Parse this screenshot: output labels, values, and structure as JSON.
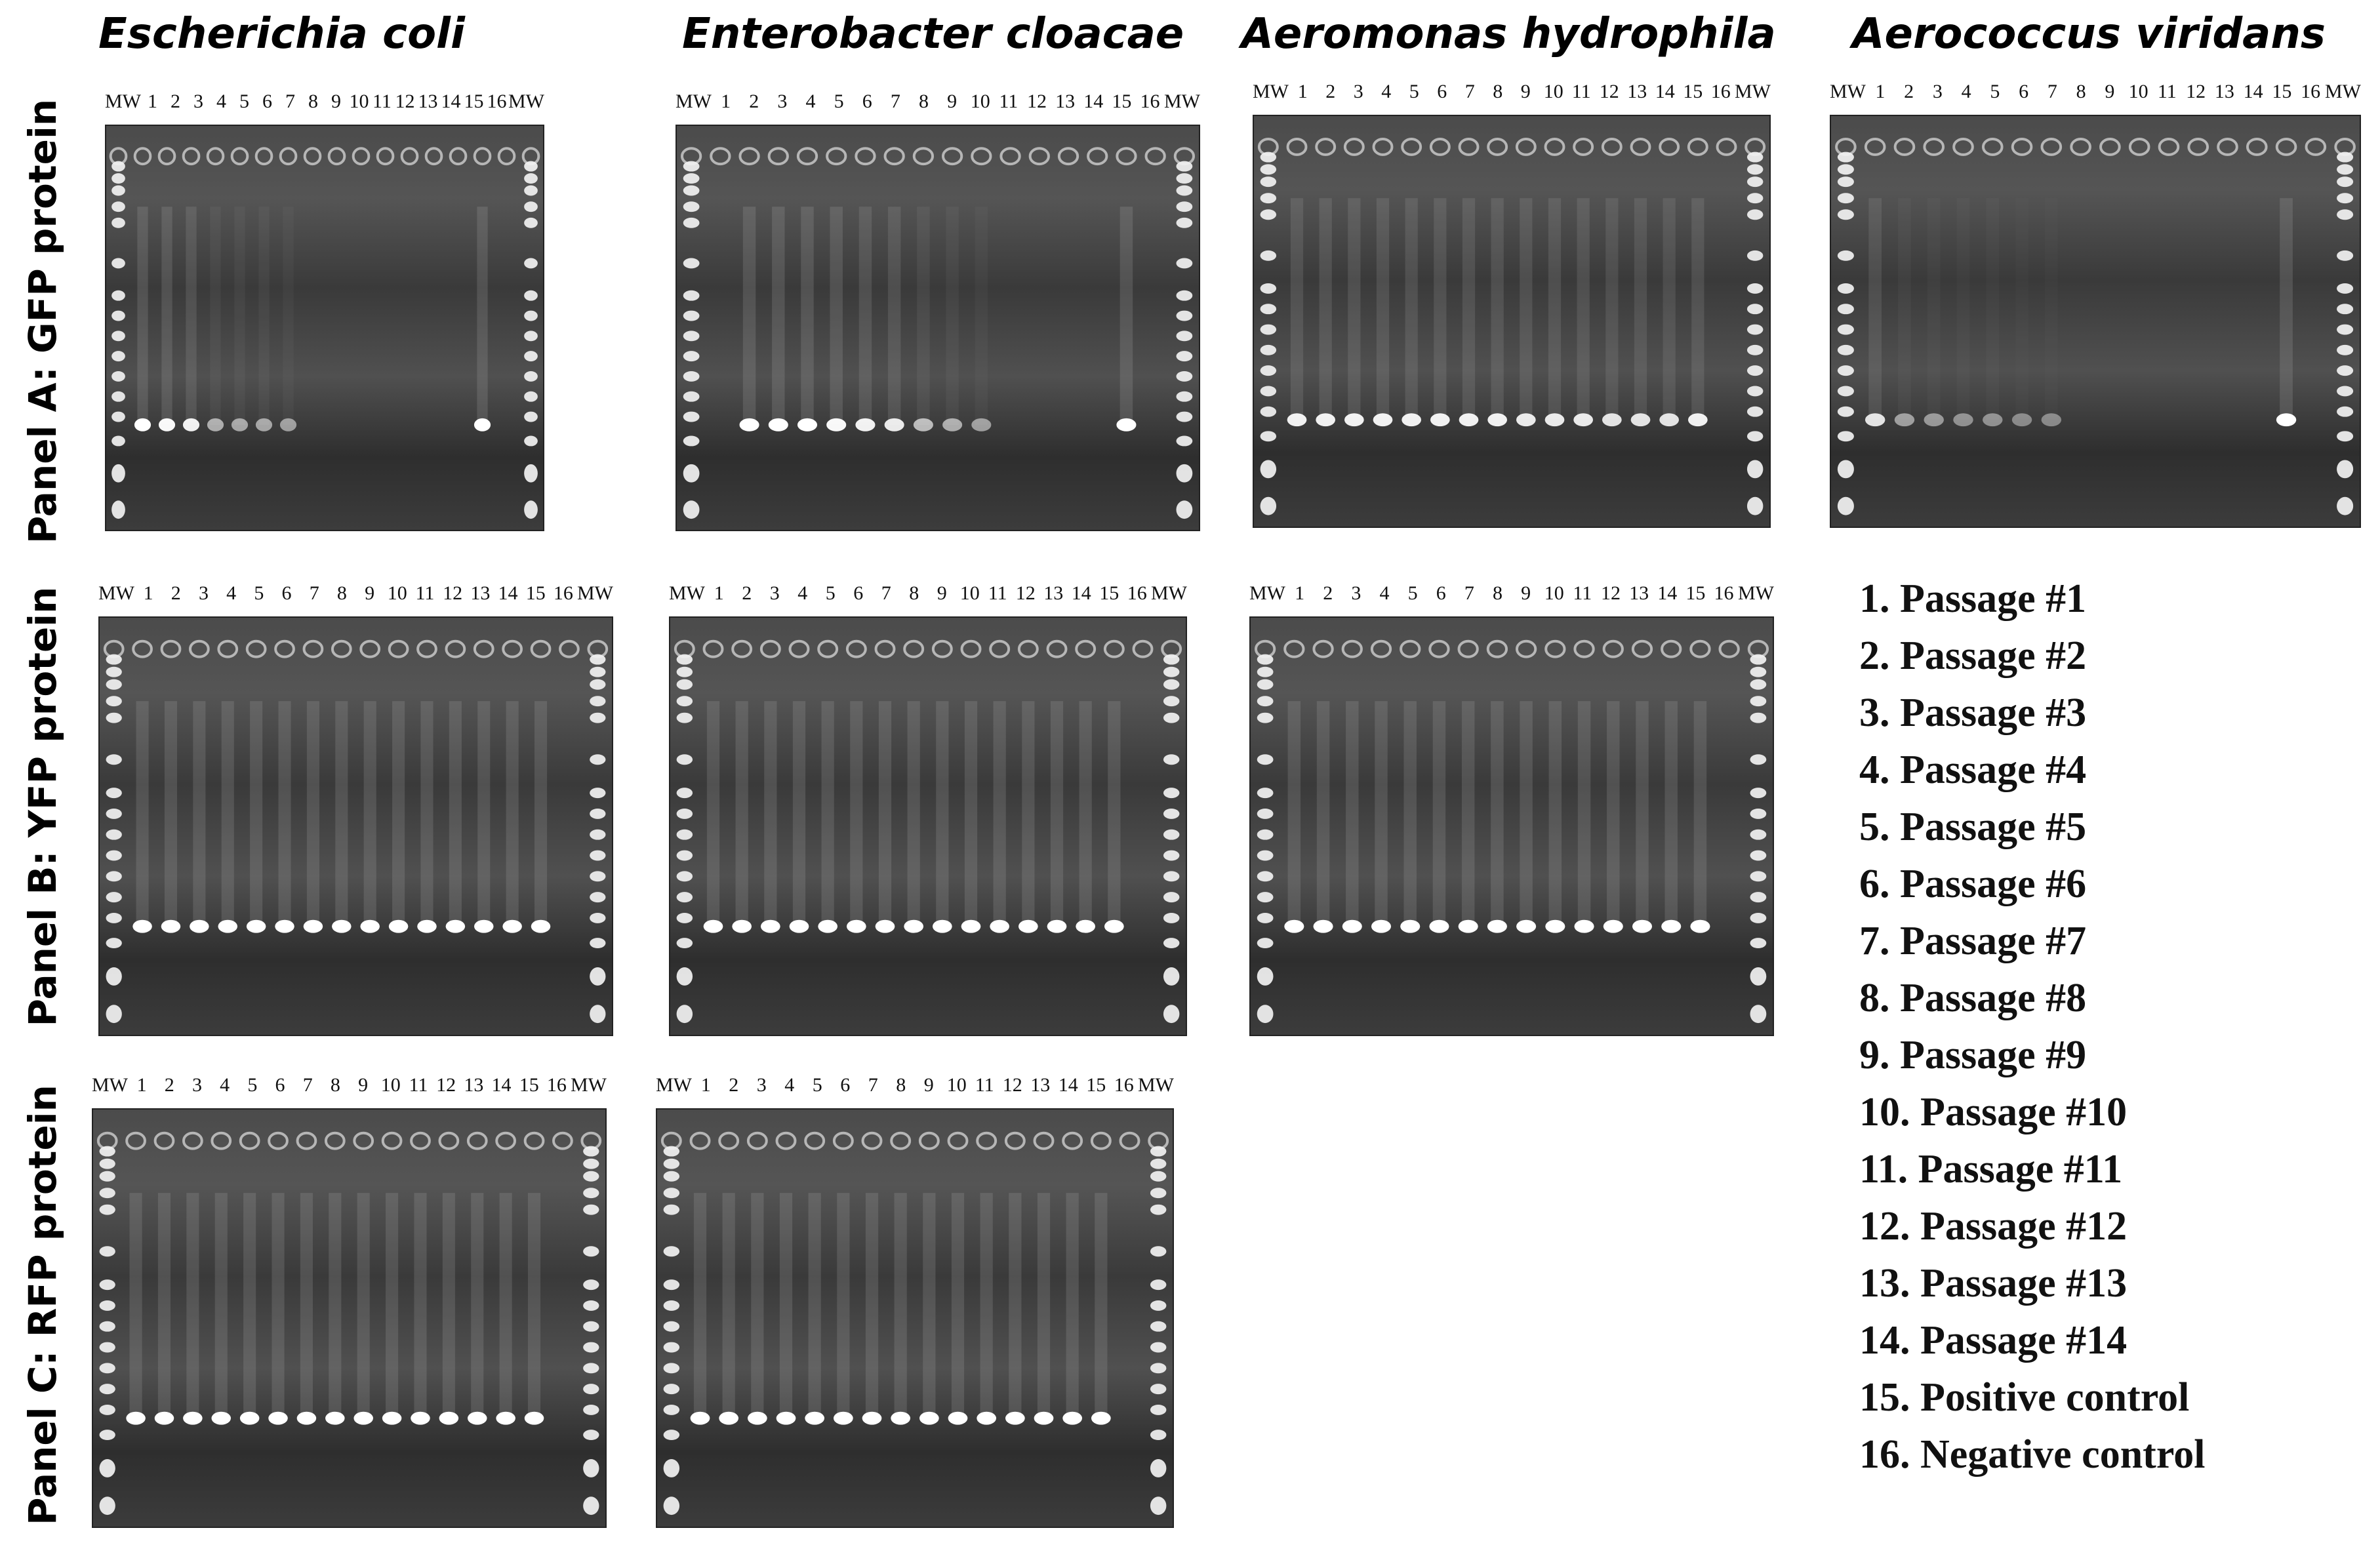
{
  "columns": [
    "Escherichia coli",
    "Enterobacter cloacae",
    "Aeromonas hydrophila",
    "Aerococcus viridans"
  ],
  "rows": [
    "Panel A: GFP protein",
    "Panel B: YFP protein",
    "Panel C: RFP protein"
  ],
  "lane_labels": [
    "MW",
    "1",
    "2",
    "3",
    "4",
    "5",
    "6",
    "7",
    "8",
    "9",
    "10",
    "11",
    "12",
    "13",
    "14",
    "15",
    "16",
    "MW"
  ],
  "gels": [
    {
      "organism": "Escherichia coli",
      "panel": "Panel A: GFP protein",
      "band_intensity": [
        1.0,
        0.95,
        0.9,
        0.4,
        0.35,
        0.35,
        0.3,
        0,
        0,
        0,
        0,
        0,
        0,
        0,
        1.0,
        0
      ]
    },
    {
      "organism": "Enterobacter cloacae",
      "panel": "Panel A: GFP protein",
      "band_intensity": [
        0,
        1.0,
        1.0,
        1.0,
        0.95,
        0.9,
        0.85,
        0.5,
        0.4,
        0.3,
        0,
        0,
        0,
        0,
        1.0,
        0
      ]
    },
    {
      "organism": "Aeromonas hydrophila",
      "panel": "Panel A: GFP protein",
      "band_intensity": [
        0.9,
        0.9,
        0.9,
        0.9,
        0.9,
        0.9,
        0.9,
        0.9,
        0.85,
        0.85,
        0.85,
        0.8,
        0.8,
        0.8,
        0.9,
        0
      ]
    },
    {
      "organism": "Aerococcus viridans",
      "panel": "Panel A: GFP protein",
      "band_intensity": [
        0.8,
        0.3,
        0.25,
        0.2,
        0.2,
        0.15,
        0.15,
        0,
        0,
        0,
        0,
        0,
        0,
        0,
        1.0,
        0
      ]
    },
    {
      "organism": "Escherichia coli",
      "panel": "Panel B: YFP protein",
      "band_intensity": [
        1,
        1,
        1,
        1,
        1,
        1,
        1,
        1,
        1,
        1,
        1,
        1,
        1,
        1,
        1,
        0
      ]
    },
    {
      "organism": "Enterobacter cloacae",
      "panel": "Panel B: YFP protein",
      "band_intensity": [
        1,
        1,
        1,
        1,
        1,
        1,
        1,
        1,
        1,
        1,
        1,
        1,
        1,
        1,
        1,
        0
      ]
    },
    {
      "organism": "Aeromonas hydrophila",
      "panel": "Panel B: YFP protein",
      "band_intensity": [
        1,
        1,
        1,
        1,
        1,
        1,
        1,
        1,
        1,
        1,
        1,
        1,
        1,
        1,
        1,
        0
      ]
    },
    {
      "organism": "Escherichia coli",
      "panel": "Panel C: RFP protein",
      "band_intensity": [
        1,
        1,
        1,
        1,
        1,
        1,
        1,
        1,
        1,
        1,
        1,
        1,
        1,
        1,
        1,
        0
      ]
    },
    {
      "organism": "Enterobacter cloacae",
      "panel": "Panel C: RFP protein",
      "band_intensity": [
        1,
        1,
        1,
        1,
        1,
        1,
        1,
        1,
        1,
        1,
        1,
        1,
        1,
        1,
        1,
        0
      ]
    }
  ],
  "legend": [
    "1. Passage #1",
    "2. Passage #2",
    "3. Passage #3",
    "4. Passage #4",
    "5. Passage #5",
    "6. Passage #6",
    "7. Passage #7",
    "8. Passage #8",
    "9. Passage #9",
    "10. Passage #10",
    "11. Passage #11",
    "12. Passage #12",
    "13. Passage #13",
    "14. Passage #14",
    "15. Positive control",
    "16. Negative control"
  ]
}
